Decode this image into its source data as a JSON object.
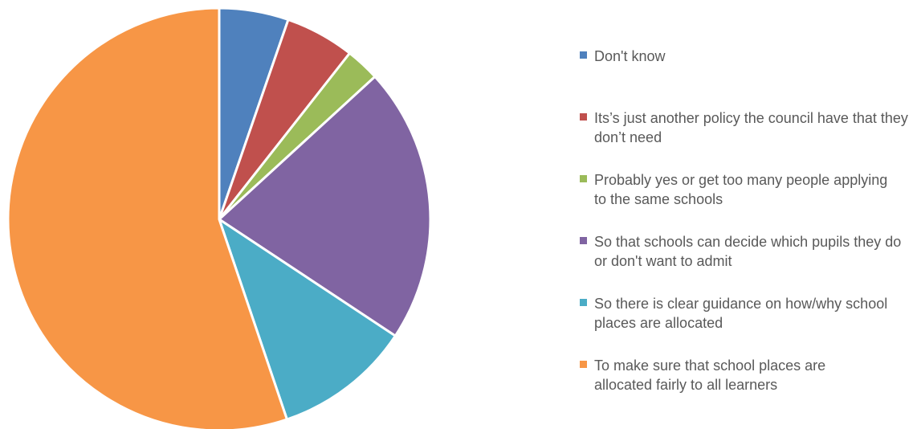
{
  "chart_data": {
    "type": "pie",
    "title": "",
    "start_angle": "12 o'clock",
    "direction": "clockwise",
    "legend_position": "right",
    "slices": [
      {
        "label": "Don't know",
        "value": 5.3,
        "color": "#4F81BD"
      },
      {
        "label": "Its’s just another policy the council have that they don’t need",
        "value": 5.3,
        "color": "#C0504D"
      },
      {
        "label": "Probably yes or get too many people applying to the same schools",
        "value": 2.6,
        "color": "#9BBB59"
      },
      {
        "label": "So that schools can decide which pupils they do or don't want to admit",
        "value": 21.1,
        "color": "#8064A2"
      },
      {
        "label": "So there is clear guidance on how/why school places are allocated",
        "value": 10.5,
        "color": "#4BACC6"
      },
      {
        "label": "To make sure that school places are allocated fairly to all learners",
        "value": 55.2,
        "color": "#F79646"
      }
    ]
  }
}
